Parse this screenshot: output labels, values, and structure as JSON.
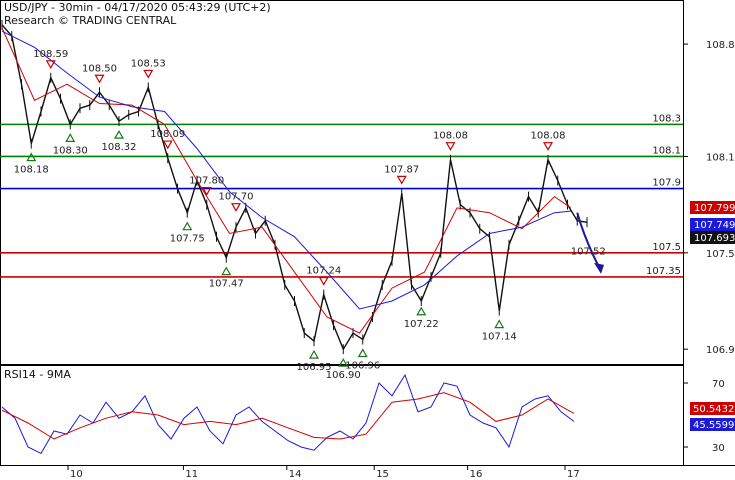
{
  "header": {
    "line1": "USD/JPY - 30min - 04/17/2020 05:43:29 (UTC+2)",
    "line2": "Research © TRADING CENTRAL"
  },
  "colors": {
    "price": "#111111",
    "ma_fast": "#d40000",
    "ma_slow": "#1a1ad8",
    "support_green": "#008000",
    "pivot_blue": "#0000cc",
    "resistance_red": "#cc0000",
    "arrow": "#1a1aa0",
    "up_marker": "#1a7a1a",
    "down_marker": "#cc0000",
    "rsi": "#1a1ad8",
    "rsi_ma": "#d40000"
  },
  "chart_data": [
    {
      "type": "line",
      "panel": "price",
      "y_ticks": [
        "108.8",
        "108.1",
        "107.5",
        "106.9"
      ],
      "ylim": [
        106.82,
        108.95
      ],
      "x_ticks": [
        "10",
        "11",
        "14",
        "15",
        "16",
        "17"
      ],
      "series": [
        {
          "name": "",
          "role": "price",
          "x": [
            0,
            3,
            6,
            9,
            12,
            15,
            18,
            21,
            24,
            27,
            30,
            33,
            36,
            39,
            42,
            45,
            48,
            51,
            54,
            57,
            60,
            63,
            66,
            69,
            72,
            75,
            78,
            81,
            84,
            87,
            90,
            93,
            96,
            99,
            102,
            105,
            108,
            111,
            114,
            117,
            120,
            123,
            126,
            129,
            132,
            135,
            138,
            141,
            144,
            147,
            150,
            153,
            156,
            159,
            162,
            165,
            168,
            171,
            174,
            177,
            180
          ],
          "values": [
            108.92,
            108.85,
            108.55,
            108.18,
            108.38,
            108.59,
            108.46,
            108.3,
            108.4,
            108.42,
            108.5,
            108.42,
            108.32,
            108.36,
            108.38,
            108.53,
            108.3,
            108.09,
            107.9,
            107.75,
            107.95,
            107.8,
            107.6,
            107.47,
            107.66,
            107.78,
            107.62,
            107.7,
            107.55,
            107.3,
            107.2,
            107.0,
            106.95,
            107.24,
            107.05,
            106.9,
            107.0,
            106.96,
            107.1,
            107.3,
            107.45,
            107.87,
            107.3,
            107.2,
            107.35,
            107.5,
            108.08,
            107.8,
            107.75,
            107.65,
            107.6,
            107.14,
            107.55,
            107.7,
            107.85,
            107.75,
            108.08,
            107.95,
            107.8,
            107.7,
            107.69
          ]
        },
        {
          "name": "",
          "role": "ma_fast",
          "x": [
            0,
            10,
            20,
            30,
            40,
            50,
            60,
            70,
            80,
            90,
            100,
            110,
            120,
            130,
            140,
            150,
            160,
            170,
            175
          ],
          "values": [
            108.9,
            108.45,
            108.55,
            108.43,
            108.42,
            108.3,
            107.95,
            107.62,
            107.66,
            107.38,
            107.1,
            107.0,
            107.28,
            107.38,
            107.78,
            107.75,
            107.65,
            107.85,
            107.78
          ]
        },
        {
          "name": "",
          "role": "ma_slow",
          "x": [
            0,
            10,
            20,
            30,
            40,
            50,
            60,
            70,
            80,
            90,
            100,
            110,
            120,
            130,
            140,
            150,
            160,
            170,
            175
          ],
          "values": [
            108.88,
            108.78,
            108.62,
            108.47,
            108.41,
            108.38,
            108.15,
            107.88,
            107.72,
            107.6,
            107.38,
            107.15,
            107.2,
            107.3,
            107.48,
            107.62,
            107.66,
            107.75,
            107.76
          ]
        }
      ],
      "levels": [
        {
          "label": "108.3",
          "value": 108.3,
          "color": "support_green"
        },
        {
          "label": "108.1",
          "value": 108.1,
          "color": "support_green"
        },
        {
          "label": "107.9",
          "value": 107.9,
          "color": "pivot_blue"
        },
        {
          "label": "107.5",
          "value": 107.5,
          "color": "resistance_red"
        },
        {
          "label": "107.35",
          "value": 107.35,
          "color": "resistance_red"
        }
      ],
      "last_values": [
        {
          "label": "107.799",
          "color": "#cc0000"
        },
        {
          "label": "107.749",
          "color": "#1a1ad8"
        },
        {
          "label": "107.693",
          "color": "#111111"
        }
      ],
      "markers": [
        {
          "type": "low",
          "x": 9,
          "value": 108.18,
          "label": "108.18"
        },
        {
          "type": "high",
          "x": 15,
          "value": 108.59,
          "label": "108.59"
        },
        {
          "type": "low",
          "x": 21,
          "value": 108.3,
          "label": "108.30"
        },
        {
          "type": "high",
          "x": 30,
          "value": 108.5,
          "label": "108.50"
        },
        {
          "type": "low",
          "x": 36,
          "value": 108.32,
          "label": "108.32"
        },
        {
          "type": "high",
          "x": 45,
          "value": 108.53,
          "label": "108.53"
        },
        {
          "type": "high",
          "x": 51,
          "value": 108.09,
          "label": "108.09"
        },
        {
          "type": "low",
          "x": 57,
          "value": 107.75,
          "label": "107.75"
        },
        {
          "type": "high",
          "x": 63,
          "value": 107.8,
          "label": "107.80"
        },
        {
          "type": "high",
          "x": 72,
          "value": 107.7,
          "label": "107.70"
        },
        {
          "type": "low",
          "x": 69,
          "value": 107.47,
          "label": "107.47"
        },
        {
          "type": "low",
          "x": 96,
          "value": 106.95,
          "label": "106.95"
        },
        {
          "type": "high",
          "x": 99,
          "value": 107.24,
          "label": "107.24"
        },
        {
          "type": "low",
          "x": 105,
          "value": 106.9,
          "label": "106.90"
        },
        {
          "type": "low",
          "x": 111,
          "value": 106.96,
          "label": "106.96"
        },
        {
          "type": "high",
          "x": 123,
          "value": 107.87,
          "label": "107.87"
        },
        {
          "type": "low",
          "x": 129,
          "value": 107.22,
          "label": "107.22"
        },
        {
          "type": "high",
          "x": 138,
          "value": 108.08,
          "label": "108.08"
        },
        {
          "type": "low",
          "x": 153,
          "value": 107.14,
          "label": "107.14"
        },
        {
          "type": "high",
          "x": 168,
          "value": 108.08,
          "label": "108.08"
        }
      ],
      "end_label": "107.52",
      "forecast_arrow": {
        "from_x": 177,
        "from_value": 107.75,
        "to_x": 184,
        "to_value": 107.4
      }
    },
    {
      "type": "line",
      "panel": "rsi",
      "title": "RSI14 - 9MA",
      "y_ticks": [
        "70",
        "30"
      ],
      "ylim": [
        20,
        80
      ],
      "series": [
        {
          "name": "",
          "role": "rsi",
          "x": [
            0,
            4,
            8,
            12,
            16,
            20,
            24,
            28,
            32,
            36,
            40,
            44,
            48,
            52,
            56,
            60,
            64,
            68,
            72,
            76,
            80,
            84,
            88,
            92,
            96,
            100,
            104,
            108,
            112,
            116,
            120,
            124,
            128,
            132,
            136,
            140,
            144,
            148,
            152,
            156,
            160,
            164,
            168,
            172,
            176
          ],
          "values": [
            55,
            48,
            30,
            26,
            40,
            38,
            50,
            45,
            58,
            48,
            52,
            62,
            44,
            35,
            48,
            55,
            40,
            32,
            50,
            55,
            46,
            40,
            34,
            30,
            28,
            36,
            40,
            35,
            45,
            70,
            62,
            75,
            52,
            55,
            70,
            68,
            50,
            45,
            42,
            30,
            55,
            60,
            62,
            52,
            46
          ]
        },
        {
          "name": "",
          "role": "rsi_ma",
          "x": [
            0,
            8,
            16,
            24,
            32,
            40,
            48,
            56,
            64,
            72,
            80,
            88,
            96,
            104,
            112,
            120,
            128,
            136,
            144,
            152,
            160,
            168,
            176
          ],
          "values": [
            53,
            45,
            35,
            42,
            48,
            52,
            50,
            44,
            46,
            44,
            48,
            42,
            36,
            35,
            38,
            58,
            60,
            64,
            58,
            46,
            50,
            60,
            51
          ]
        }
      ],
      "last_values": [
        {
          "label": "50.5432",
          "color": "#cc0000"
        },
        {
          "label": "45.5599",
          "color": "#1a1ad8"
        }
      ]
    }
  ]
}
